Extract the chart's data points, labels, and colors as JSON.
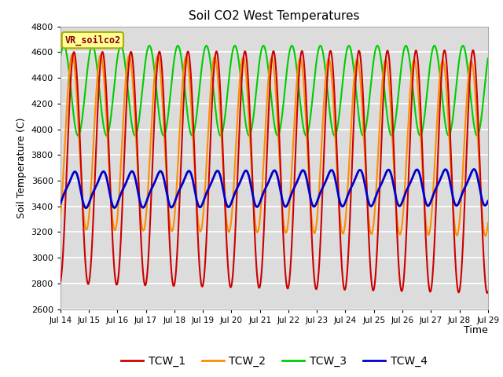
{
  "title": "Soil CO2 West Temperatures",
  "xlabel": "Time",
  "ylabel": "Soil Temperature (C)",
  "ylim": [
    2600,
    4800
  ],
  "xlim_days": [
    14,
    29
  ],
  "annotation": "VR_soilco2",
  "bg_color": "#dcdcdc",
  "fig_color": "#ffffff",
  "grid_color": "#ffffff",
  "lines": {
    "TCW_1": {
      "color": "#cc0000",
      "lw": 1.5
    },
    "TCW_2": {
      "color": "#ff8c00",
      "lw": 1.5
    },
    "TCW_3": {
      "color": "#00cc00",
      "lw": 1.5
    },
    "TCW_4": {
      "color": "#0000cc",
      "lw": 2.0
    }
  },
  "legend_labels": [
    "TCW_1",
    "TCW_2",
    "TCW_3",
    "TCW_4"
  ],
  "legend_colors": [
    "#cc0000",
    "#ff8c00",
    "#00cc00",
    "#0000cc"
  ],
  "xtick_days": [
    14,
    15,
    16,
    17,
    18,
    19,
    20,
    21,
    22,
    23,
    24,
    25,
    26,
    27,
    28,
    29
  ],
  "yticks": [
    2600,
    2800,
    3000,
    3200,
    3400,
    3600,
    3800,
    4000,
    4200,
    4400,
    4600,
    4800
  ]
}
